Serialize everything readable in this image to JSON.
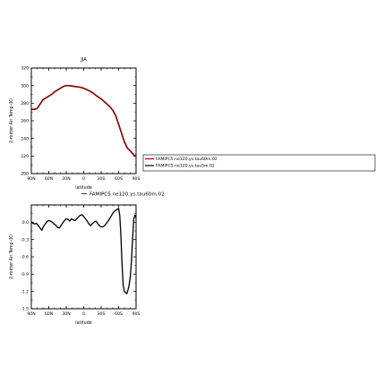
{
  "chart_data": [
    {
      "type": "line",
      "title": "JJA",
      "xlabel": "latitude",
      "ylabel": "2-meter Air Temp (K)",
      "xlim": [
        90,
        -90
      ],
      "ylim": [
        200,
        320
      ],
      "x_ticks": [
        90,
        60,
        30,
        0,
        -30,
        -60,
        -90
      ],
      "x_tick_labels": [
        "90N",
        "60N",
        "30N",
        "0",
        "30S",
        "60S",
        "90S"
      ],
      "y_ticks": [
        200,
        220,
        240,
        260,
        280,
        300,
        320
      ],
      "y_tick_labels": [
        "200",
        "220",
        "240",
        "260",
        "280",
        "300",
        "320"
      ],
      "x": [
        90,
        85,
        80,
        75,
        70,
        65,
        60,
        55,
        50,
        45,
        40,
        35,
        30,
        25,
        20,
        15,
        10,
        5,
        0,
        -5,
        -10,
        -15,
        -20,
        -25,
        -30,
        -35,
        -40,
        -45,
        -50,
        -55,
        -60,
        -65,
        -70,
        -75,
        -80,
        -85,
        -90
      ],
      "series": [
        {
          "name": "FAMIPC5.ne120.ys.tau60m.02",
          "color": "#b00000",
          "values": [
            273,
            273,
            274,
            279,
            284,
            286,
            288,
            290,
            293,
            295,
            297,
            299,
            300,
            300,
            299.5,
            299,
            298.5,
            298,
            297,
            295.5,
            294,
            292,
            289.5,
            287,
            285,
            282,
            279,
            276,
            272,
            266,
            256,
            246,
            236,
            229,
            226,
            222,
            219
          ]
        },
        {
          "name": "FAMIPC5.ne120.ys.tau5m.02",
          "color": "#000000",
          "values": [
            273,
            273,
            274,
            279,
            284,
            286,
            288,
            290,
            293,
            295,
            297,
            299,
            300,
            300,
            299.5,
            299,
            298.5,
            298,
            297,
            295.5,
            294,
            292,
            289.5,
            287,
            285,
            282,
            279,
            276,
            272,
            266,
            256,
            246,
            236,
            229,
            226,
            222,
            219
          ]
        }
      ]
    },
    {
      "type": "line",
      "title": "FAMIPC5.ne120.ys.tau60m.02",
      "xlabel": "latitude",
      "ylabel": "2-meter Air Temp (K)",
      "xlim": [
        90,
        -90
      ],
      "ylim": [
        -1.5,
        0.3
      ],
      "x_ticks": [
        90,
        60,
        30,
        0,
        -30,
        -60,
        -90
      ],
      "x_tick_labels": [
        "90N",
        "60N",
        "30N",
        "0",
        "30S",
        "60S",
        "90S"
      ],
      "y_ticks": [
        -1.5,
        -1.2,
        -0.9,
        -0.6,
        -0.3,
        0.0
      ],
      "y_tick_labels": [
        "-1.5",
        "-1.2",
        "-0.9",
        "-0.6",
        "-0.3",
        "0.0"
      ],
      "x": [
        90,
        87,
        84,
        81,
        78,
        75,
        72,
        69,
        66,
        63,
        60,
        57,
        54,
        51,
        48,
        45,
        42,
        39,
        36,
        33,
        30,
        27,
        24,
        21,
        18,
        15,
        12,
        9,
        6,
        3,
        0,
        -3,
        -6,
        -9,
        -12,
        -15,
        -18,
        -21,
        -24,
        -27,
        -30,
        -33,
        -36,
        -39,
        -42,
        -45,
        -48,
        -51,
        -54,
        -57,
        -60,
        -62,
        -64,
        -66,
        -68,
        -70,
        -72,
        -74,
        -76,
        -78,
        -80,
        -82,
        -84,
        -86,
        -88,
        -90
      ],
      "series": [
        {
          "name": "FAMIPC5.ne120.ys.tau60m.02",
          "color": "#000000",
          "values": [
            0.0,
            -0.02,
            -0.03,
            -0.02,
            -0.06,
            -0.1,
            -0.14,
            -0.07,
            -0.03,
            0.01,
            0.03,
            0.02,
            0.0,
            -0.03,
            -0.05,
            -0.09,
            -0.1,
            -0.06,
            -0.01,
            0.03,
            0.06,
            0.05,
            0.02,
            0.06,
            0.04,
            0.03,
            0.06,
            0.09,
            0.12,
            0.13,
            0.1,
            0.06,
            0.02,
            -0.03,
            -0.06,
            -0.02,
            0.0,
            0.02,
            -0.02,
            -0.06,
            -0.08,
            -0.08,
            -0.06,
            -0.02,
            0.02,
            0.07,
            0.12,
            0.17,
            0.2,
            0.22,
            0.24,
            0.12,
            -0.25,
            -0.75,
            -1.1,
            -1.2,
            -1.22,
            -1.24,
            -1.18,
            -1.1,
            -0.95,
            -0.7,
            -0.3,
            0.05,
            0.12,
            0.08
          ]
        }
      ]
    }
  ],
  "legend": {
    "entries": [
      {
        "label": "FAMIPC5.ne120.ys.tau60m.02",
        "color": "#b00000"
      },
      {
        "label": "FAMIPC5.ne120.ys.tau5m.02",
        "color": "#000000"
      }
    ]
  }
}
